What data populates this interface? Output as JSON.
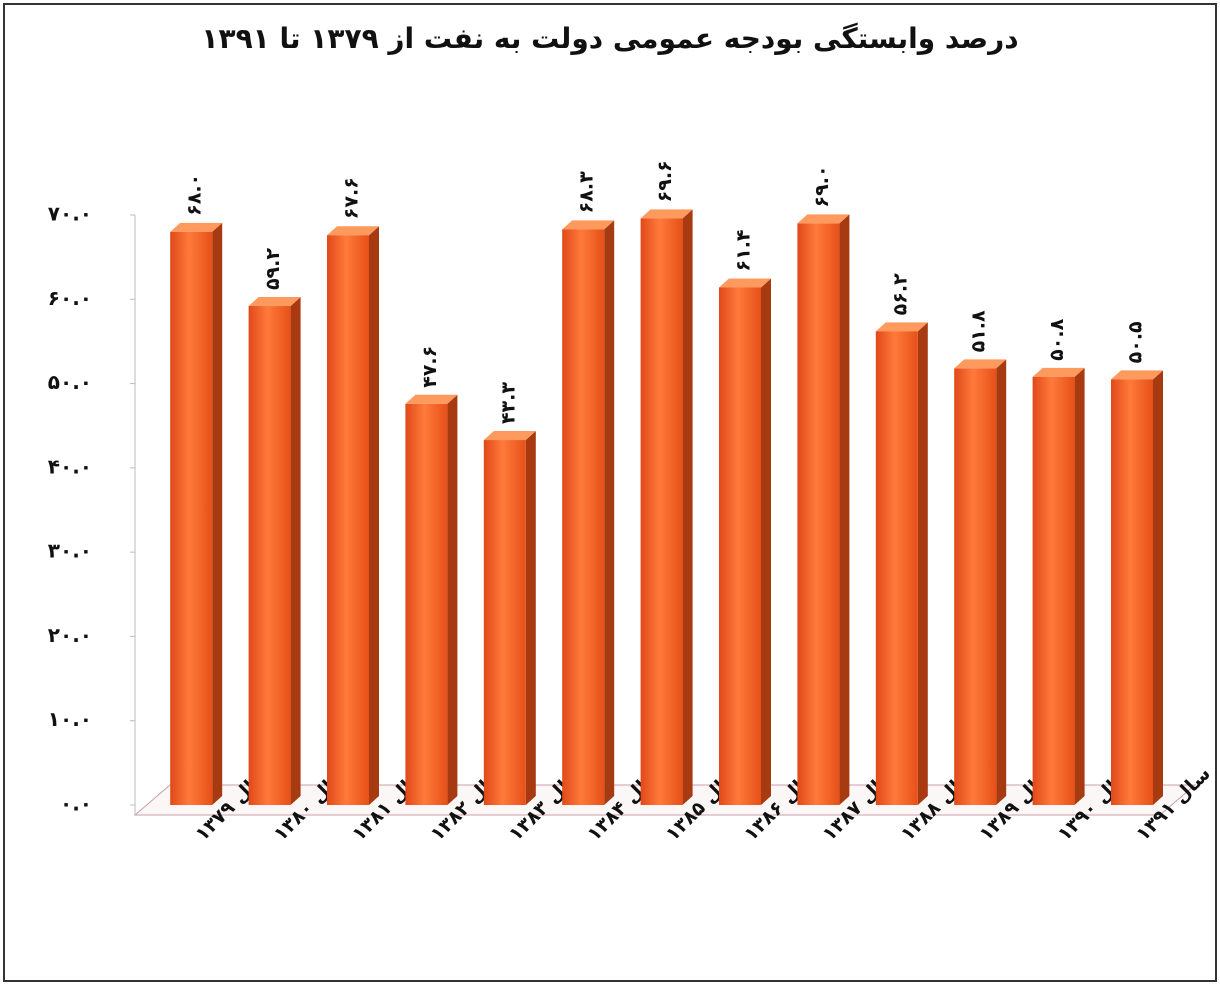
{
  "chart_data": {
    "type": "bar",
    "title": "درصد وابستگی بودجه عمومی دولت به نفت از ۱۳۷۹ تا ۱۳۹۱",
    "categories": [
      "سال ۱۳۷۹",
      "سال ۱۳۸۰",
      "سال ۱۳۸۱",
      "سال ۱۳۸۲",
      "سال ۱۳۸۳",
      "سال ۱۳۸۴",
      "سال ۱۳۸۵",
      "سال ۱۳۸۶",
      "سال ۱۳۸۷",
      "سال ۱۳۸۸",
      "سال ۱۳۸۹",
      "سال ۱۳۹۰",
      "سال ۱۳۹۱"
    ],
    "values": [
      68.0,
      59.2,
      67.6,
      47.6,
      43.3,
      68.3,
      69.6,
      61.4,
      69.0,
      56.2,
      51.8,
      50.8,
      50.5
    ],
    "value_labels": [
      "۶۸.۰",
      "۵۹.۲",
      "۶۷.۶",
      "۴۷.۶",
      "۴۳.۳",
      "۶۸.۳",
      "۶۹.۶",
      "۶۱.۴",
      "۶۹.۰",
      "۵۶.۲",
      "۵۱.۸",
      "۵۰.۸",
      "۵۰.۵"
    ],
    "color": "#f26522",
    "ylim": [
      0,
      70
    ],
    "yticks": [
      {
        "value": 0,
        "label": "۰.۰"
      },
      {
        "value": 10,
        "label": "۱۰.۰"
      },
      {
        "value": 20,
        "label": "۲۰.۰"
      },
      {
        "value": 30,
        "label": "۳۰.۰"
      },
      {
        "value": 40,
        "label": "۴۰.۰"
      },
      {
        "value": 50,
        "label": "۵۰.۰"
      },
      {
        "value": 60,
        "label": "۶۰.۰"
      },
      {
        "value": 70,
        "label": "۷۰.۰"
      }
    ],
    "grid": false
  }
}
